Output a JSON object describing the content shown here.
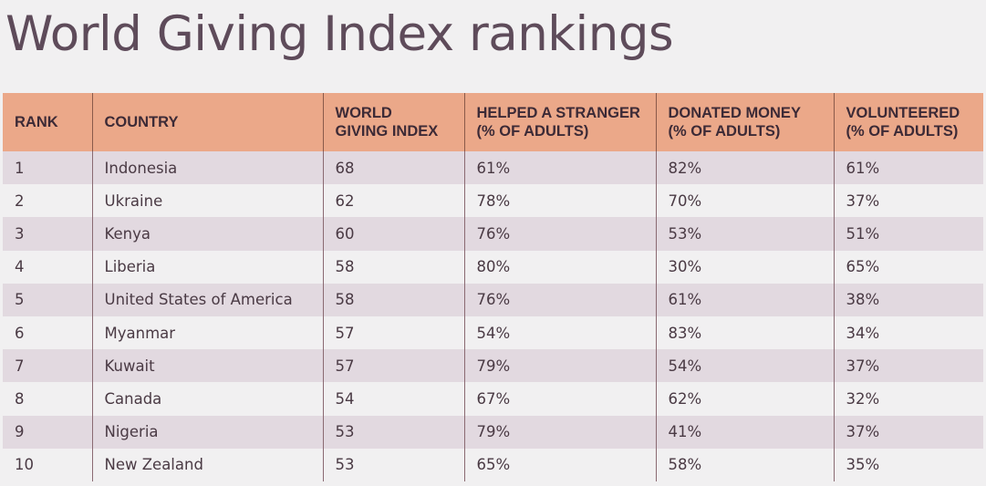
{
  "chart_data": {
    "type": "table",
    "title": "World Giving Index rankings",
    "columns": [
      "RANK",
      "COUNTRY",
      "WORLD GIVING INDEX",
      "HELPED A STRANGER (% OF ADULTS)",
      "DONATED MONEY (% OF ADULTS)",
      "VOLUNTEERED (% OF ADULTS)"
    ],
    "header_lines": [
      [
        "RANK"
      ],
      [
        "COUNTRY"
      ],
      [
        "WORLD",
        "GIVING INDEX"
      ],
      [
        "HELPED A STRANGER",
        "(% OF ADULTS)"
      ],
      [
        "DONATED MONEY",
        "(% OF ADULTS)"
      ],
      [
        "VOLUNTEERED",
        "(% OF ADULTS)"
      ]
    ],
    "rows": [
      [
        "1",
        "Indonesia",
        "68",
        "61%",
        "82%",
        "61%"
      ],
      [
        "2",
        "Ukraine",
        "62",
        "78%",
        "70%",
        "37%"
      ],
      [
        "3",
        "Kenya",
        "60",
        "76%",
        "53%",
        "51%"
      ],
      [
        "4",
        "Liberia",
        "58",
        "80%",
        "30%",
        "65%"
      ],
      [
        "5",
        "United States of America",
        "58",
        "76%",
        "61%",
        "38%"
      ],
      [
        "6",
        "Myanmar",
        "57",
        "54%",
        "83%",
        "34%"
      ],
      [
        "7",
        "Kuwait",
        "57",
        "79%",
        "54%",
        "37%"
      ],
      [
        "8",
        "Canada",
        "54",
        "67%",
        "62%",
        "32%"
      ],
      [
        "9",
        "Nigeria",
        "53",
        "79%",
        "41%",
        "37%"
      ],
      [
        "10",
        "New Zealand",
        "53",
        "65%",
        "58%",
        "35%"
      ]
    ]
  },
  "colors": {
    "header_background": "#eba889",
    "row_stripe": "#e2d9e0",
    "row_plain": "#f1f0f1",
    "title_text": "#5e4b5a",
    "body_text": "#4a3a44"
  }
}
